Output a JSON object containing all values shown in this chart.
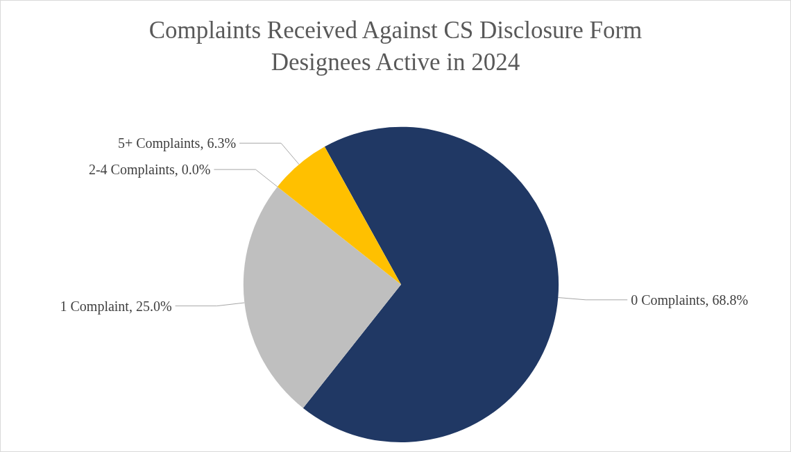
{
  "chart_data": {
    "type": "pie",
    "title": "Complaints Received Against CS Disclosure Form\nDesignees Active in 2024",
    "categories": [
      "0 Complaints",
      "1 Complaint",
      "2-4 Complaints",
      "5+ Complaints"
    ],
    "values": [
      68.8,
      25.0,
      0.0,
      6.3
    ],
    "value_labels": [
      "68.8%",
      "25.0%",
      "0.0%",
      "6.3%"
    ],
    "colors": [
      "#203864",
      "#bfbfbf",
      "#ed7d31",
      "#ffc000"
    ]
  }
}
